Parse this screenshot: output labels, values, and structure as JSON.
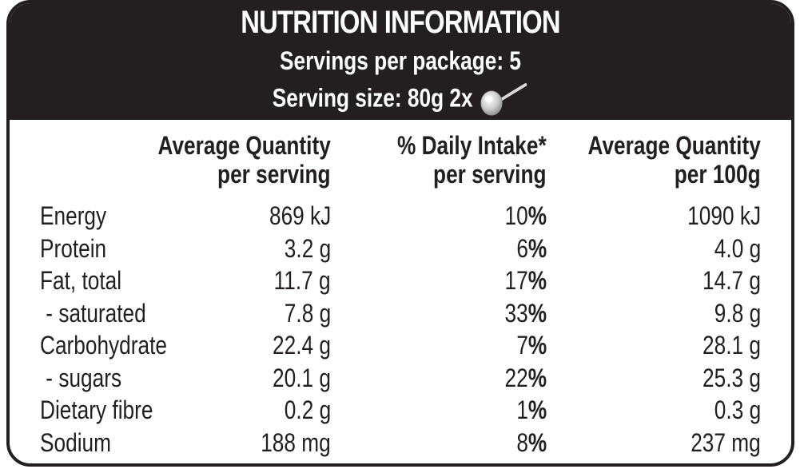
{
  "header": {
    "title": "NUTRITION INFORMATION",
    "servings_per_package": "Servings per package: 5",
    "serving_size": "Serving size: 80g 2x"
  },
  "columns": [
    {
      "line1": "Average Quantity",
      "line2": "per serving"
    },
    {
      "line1": "% Daily Intake*",
      "line2": "per serving"
    },
    {
      "line1": "Average Quantity",
      "line2": "per 100g"
    }
  ],
  "rows": [
    {
      "nutrient": "Energy",
      "per_serving": "869 kJ",
      "daily_intake_num": "10",
      "daily_intake_pct": "%",
      "per_100g": "1090 kJ"
    },
    {
      "nutrient": "Protein",
      "per_serving": "3.2 g",
      "daily_intake_num": "6",
      "daily_intake_pct": "%",
      "per_100g": "4.0 g"
    },
    {
      "nutrient": "Fat, total",
      "per_serving": "11.7 g",
      "daily_intake_num": "17",
      "daily_intake_pct": "%",
      "per_100g": "14.7 g"
    },
    {
      "nutrient": " - saturated",
      "per_serving": "7.8 g",
      "daily_intake_num": "33",
      "daily_intake_pct": "%",
      "per_100g": "9.8 g"
    },
    {
      "nutrient": "Carbohydrate",
      "per_serving": "22.4 g",
      "daily_intake_num": "7",
      "daily_intake_pct": "%",
      "per_100g": "28.1 g"
    },
    {
      "nutrient": " - sugars",
      "per_serving": "20.1 g",
      "daily_intake_num": "22",
      "daily_intake_pct": "%",
      "per_100g": "25.3 g"
    },
    {
      "nutrient": "Dietary fibre",
      "per_serving": "0.2 g",
      "daily_intake_num": "1",
      "daily_intake_pct": "%",
      "per_100g": "0.3 g"
    },
    {
      "nutrient": "Sodium",
      "per_serving": "188 mg",
      "daily_intake_num": "8",
      "daily_intake_pct": "%",
      "per_100g": "237 mg"
    }
  ],
  "icons": {
    "scoop": "scoop-icon"
  },
  "colors": {
    "panel": "#231f20",
    "text_on_dark": "#ffffff"
  }
}
